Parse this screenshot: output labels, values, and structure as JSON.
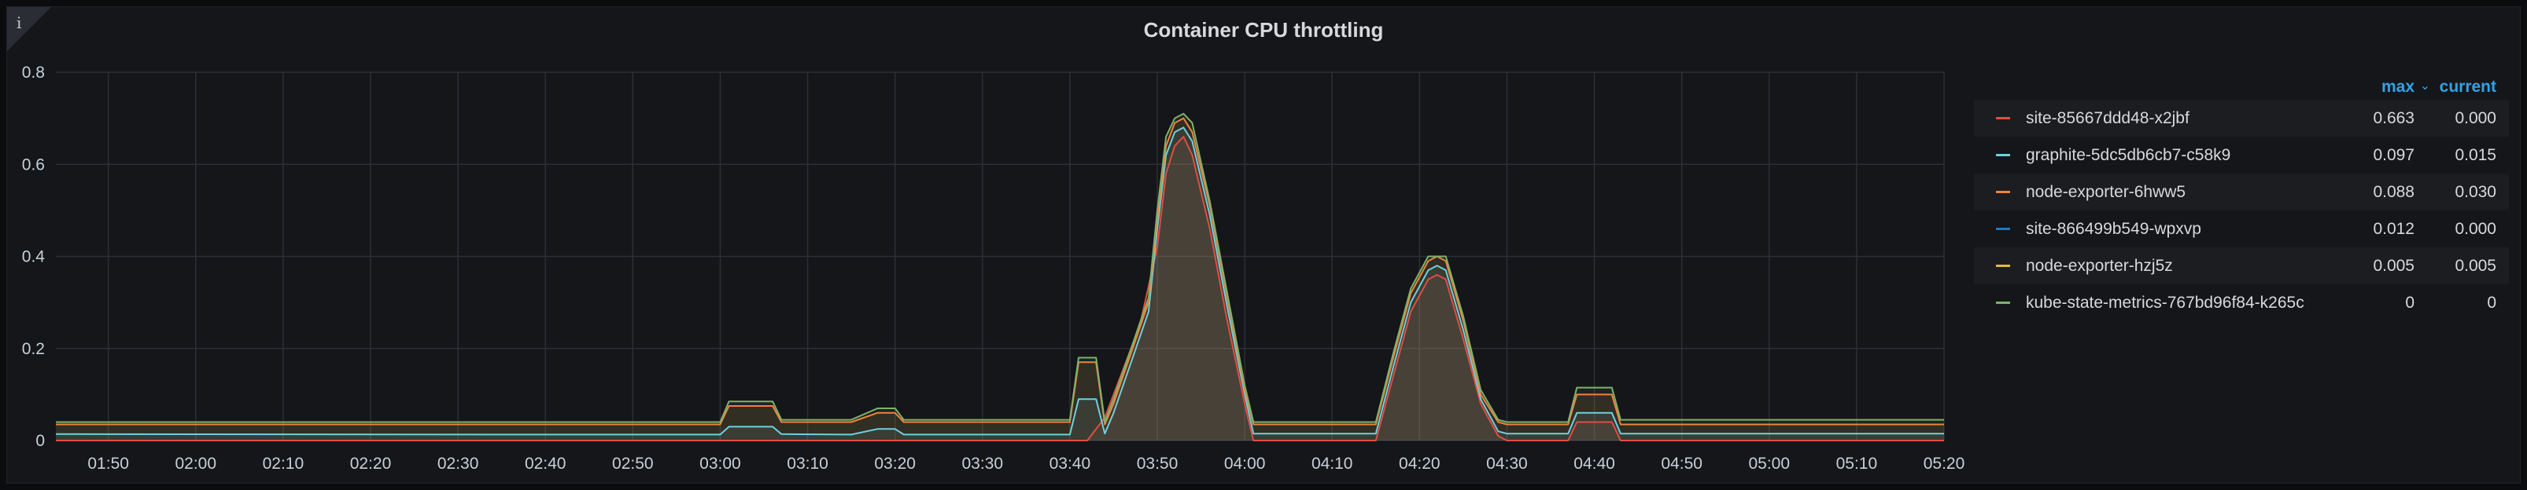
{
  "panel": {
    "title": "Container CPU throttling",
    "info_icon": "i",
    "info_icon_name": "info-icon"
  },
  "legend": {
    "col_max": "max",
    "sort_icon": "⌄",
    "col_current": "current",
    "rows": [
      {
        "name": "site-85667ddd48-x2jbf",
        "max": "0.663",
        "current": "0.000",
        "color": "#e24d42"
      },
      {
        "name": "graphite-5dc5db6cb7-c58k9",
        "max": "0.097",
        "current": "0.015",
        "color": "#6ed0e0"
      },
      {
        "name": "node-exporter-6hww5",
        "max": "0.088",
        "current": "0.030",
        "color": "#ef843c"
      },
      {
        "name": "site-866499b549-wpxvp",
        "max": "0.012",
        "current": "0.000",
        "color": "#1f78c1"
      },
      {
        "name": "node-exporter-hzj5z",
        "max": "0.005",
        "current": "0.005",
        "color": "#eab839"
      },
      {
        "name": "kube-state-metrics-767bd96f84-k265c",
        "max": "0",
        "current": "0",
        "color": "#7eb26d"
      }
    ]
  },
  "chart_data": {
    "type": "area",
    "title": "Container CPU throttling",
    "ylim": [
      0,
      0.8
    ],
    "yticks": [
      "0",
      "0.2",
      "0.4",
      "0.6",
      "0.8"
    ],
    "xlim": [
      "01:44",
      "05:20"
    ],
    "xticks": [
      "01:50",
      "02:00",
      "02:10",
      "02:20",
      "02:30",
      "02:40",
      "02:50",
      "03:00",
      "03:10",
      "03:20",
      "03:30",
      "03:40",
      "03:50",
      "04:00",
      "04:10",
      "04:20",
      "04:30",
      "04:40",
      "04:50",
      "05:00",
      "05:10",
      "05:20"
    ],
    "grid": true,
    "legend_position": "right",
    "series": [
      {
        "name": "site-85667ddd48-x2jbf",
        "color": "#e24d42",
        "x": [
          "01:44",
          "03:42",
          "03:44",
          "03:46",
          "03:48",
          "03:50",
          "03:51",
          "03:52",
          "03:53",
          "03:54",
          "03:56",
          "03:58",
          "04:00",
          "04:01",
          "04:15",
          "04:17",
          "04:19",
          "04:21",
          "04:22",
          "04:23",
          "04:25",
          "04:27",
          "04:29",
          "04:30",
          "04:37",
          "04:38",
          "04:42",
          "04:43",
          "05:20"
        ],
        "y": [
          0,
          0,
          0.05,
          0.15,
          0.25,
          0.42,
          0.58,
          0.64,
          0.66,
          0.62,
          0.46,
          0.26,
          0.08,
          0,
          0,
          0.14,
          0.28,
          0.35,
          0.36,
          0.35,
          0.22,
          0.08,
          0.01,
          0,
          0,
          0.04,
          0.04,
          0,
          0
        ]
      },
      {
        "name": "graphite-5dc5db6cb7-c58k9",
        "color": "#6ed0e0",
        "x": [
          "01:44",
          "02:40",
          "03:00",
          "03:01",
          "03:06",
          "03:07",
          "03:15",
          "03:18",
          "03:20",
          "03:21",
          "03:40",
          "03:41",
          "03:43",
          "03:44",
          "03:45",
          "03:47",
          "03:49",
          "03:50",
          "03:51",
          "03:52",
          "03:53",
          "03:54",
          "03:56",
          "03:58",
          "04:00",
          "04:01",
          "04:15",
          "04:17",
          "04:19",
          "04:21",
          "04:22",
          "04:23",
          "04:25",
          "04:27",
          "04:29",
          "04:30",
          "04:37",
          "04:38",
          "04:42",
          "04:43",
          "05:20"
        ],
        "y": [
          0.014,
          0.013,
          0.013,
          0.03,
          0.03,
          0.014,
          0.013,
          0.025,
          0.025,
          0.013,
          0.013,
          0.09,
          0.09,
          0.015,
          0.06,
          0.17,
          0.28,
          0.46,
          0.62,
          0.67,
          0.68,
          0.65,
          0.49,
          0.29,
          0.1,
          0.015,
          0.015,
          0.16,
          0.3,
          0.37,
          0.38,
          0.37,
          0.24,
          0.09,
          0.02,
          0.015,
          0.015,
          0.06,
          0.06,
          0.015,
          0.015
        ]
      },
      {
        "name": "node-exporter-6hww5",
        "color": "#ef843c",
        "x": [
          "01:44",
          "03:00",
          "03:01",
          "03:06",
          "03:07",
          "03:15",
          "03:18",
          "03:20",
          "03:21",
          "03:40",
          "03:41",
          "03:43",
          "03:44",
          "03:45",
          "03:47",
          "03:49",
          "03:50",
          "03:51",
          "03:52",
          "03:53",
          "03:54",
          "03:56",
          "03:58",
          "04:00",
          "04:01",
          "04:15",
          "04:17",
          "04:19",
          "04:21",
          "04:22",
          "04:23",
          "04:25",
          "04:27",
          "04:29",
          "04:30",
          "04:37",
          "04:38",
          "04:42",
          "04:43",
          "05:20"
        ],
        "y": [
          0.035,
          0.035,
          0.075,
          0.075,
          0.04,
          0.04,
          0.06,
          0.06,
          0.04,
          0.04,
          0.17,
          0.17,
          0.035,
          0.08,
          0.19,
          0.3,
          0.48,
          0.64,
          0.69,
          0.7,
          0.67,
          0.51,
          0.31,
          0.11,
          0.035,
          0.035,
          0.18,
          0.32,
          0.39,
          0.4,
          0.39,
          0.26,
          0.1,
          0.04,
          0.035,
          0.035,
          0.1,
          0.1,
          0.035,
          0.035
        ]
      },
      {
        "name": "kube-state-metrics-767bd96f84-k265c",
        "color": "#7eb26d",
        "x": [
          "01:44",
          "03:00",
          "03:01",
          "03:06",
          "03:07",
          "03:15",
          "03:18",
          "03:20",
          "03:21",
          "03:40",
          "03:41",
          "03:43",
          "03:44",
          "03:45",
          "03:47",
          "03:49",
          "03:50",
          "03:51",
          "03:52",
          "03:53",
          "03:54",
          "03:56",
          "03:58",
          "04:00",
          "04:01",
          "04:15",
          "04:17",
          "04:19",
          "04:21",
          "04:22",
          "04:23",
          "04:25",
          "04:27",
          "04:29",
          "04:30",
          "04:37",
          "04:38",
          "04:42",
          "04:43",
          "05:20"
        ],
        "y": [
          0.04,
          0.04,
          0.085,
          0.085,
          0.045,
          0.045,
          0.07,
          0.07,
          0.045,
          0.045,
          0.18,
          0.18,
          0.04,
          0.09,
          0.2,
          0.31,
          0.5,
          0.66,
          0.7,
          0.71,
          0.69,
          0.52,
          0.32,
          0.12,
          0.04,
          0.04,
          0.19,
          0.33,
          0.4,
          0.4,
          0.4,
          0.27,
          0.11,
          0.045,
          0.04,
          0.04,
          0.115,
          0.115,
          0.045,
          0.045
        ]
      }
    ]
  }
}
